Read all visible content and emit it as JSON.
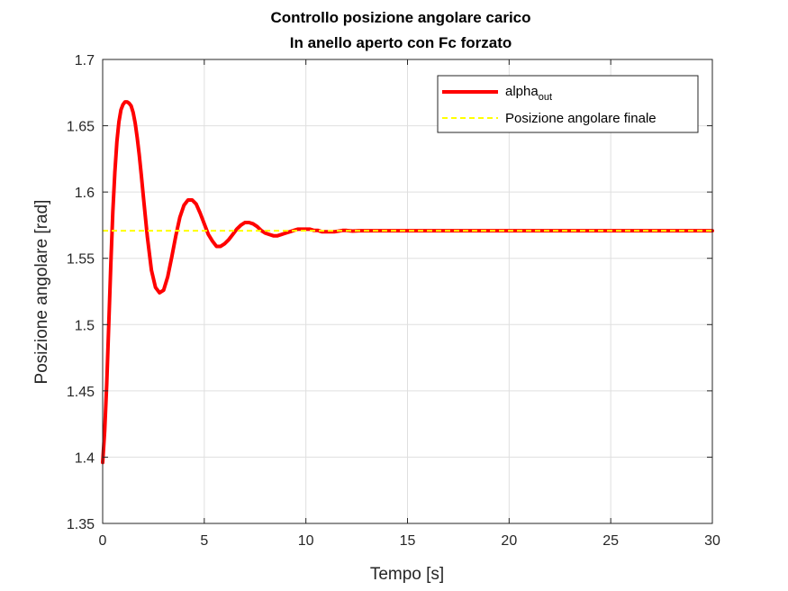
{
  "chart_data": {
    "type": "line",
    "title": [
      "Controllo posizione angolare carico",
      "In anello aperto con Fc forzato"
    ],
    "xlabel": "Tempo [s]",
    "ylabel": "Posizione angolare [rad]",
    "xlim": [
      0,
      30
    ],
    "ylim": [
      1.35,
      1.7
    ],
    "xticks": [
      0,
      5,
      10,
      15,
      20,
      25,
      30
    ],
    "xtick_labels": [
      "0",
      "5",
      "10",
      "15",
      "20",
      "25",
      "30"
    ],
    "yticks": [
      1.35,
      1.4,
      1.45,
      1.5,
      1.55,
      1.6,
      1.65,
      1.7
    ],
    "ytick_labels": [
      "1.35",
      "1.4",
      "1.45",
      "1.5",
      "1.55",
      "1.6",
      "1.65",
      "1.7"
    ],
    "grid": true,
    "legend_position": "top-right",
    "series": [
      {
        "name": "alpha",
        "name_subscript": "out",
        "color": "#ff0000",
        "style": "solid",
        "x": [
          0,
          0.1,
          0.2,
          0.3,
          0.4,
          0.5,
          0.6,
          0.7,
          0.8,
          0.9,
          1.0,
          1.1,
          1.2,
          1.3,
          1.4,
          1.5,
          1.6,
          1.7,
          1.8,
          1.9,
          2.0,
          2.2,
          2.4,
          2.6,
          2.8,
          3.0,
          3.2,
          3.4,
          3.6,
          3.8,
          4.0,
          4.2,
          4.4,
          4.6,
          4.8,
          5.0,
          5.2,
          5.4,
          5.6,
          5.8,
          6.0,
          6.2,
          6.4,
          6.6,
          6.8,
          7.0,
          7.2,
          7.4,
          7.6,
          7.8,
          8.0,
          8.2,
          8.4,
          8.6,
          8.8,
          9.0,
          9.2,
          9.4,
          9.6,
          9.8,
          10.0,
          10.2,
          10.4,
          10.6,
          10.8,
          11.0,
          11.2,
          11.4,
          11.6,
          11.8,
          12.0,
          12.3,
          12.6,
          13.0,
          13.5,
          14.0,
          14.5,
          15.0,
          16.0,
          18.0,
          20.0,
          22.0,
          25.0,
          28.0,
          30.0
        ],
        "y": [
          1.396,
          1.42,
          1.455,
          1.5,
          1.545,
          1.585,
          1.615,
          1.638,
          1.653,
          1.662,
          1.666,
          1.668,
          1.668,
          1.667,
          1.665,
          1.66,
          1.652,
          1.641,
          1.628,
          1.613,
          1.597,
          1.566,
          1.541,
          1.528,
          1.524,
          1.526,
          1.536,
          1.551,
          1.567,
          1.581,
          1.59,
          1.594,
          1.594,
          1.591,
          1.584,
          1.576,
          1.568,
          1.563,
          1.559,
          1.559,
          1.561,
          1.564,
          1.568,
          1.572,
          1.575,
          1.577,
          1.577,
          1.576,
          1.574,
          1.571,
          1.569,
          1.568,
          1.567,
          1.567,
          1.568,
          1.569,
          1.57,
          1.571,
          1.572,
          1.572,
          1.572,
          1.572,
          1.571,
          1.571,
          1.57,
          1.57,
          1.57,
          1.57,
          1.5705,
          1.571,
          1.571,
          1.5705,
          1.5708,
          1.5708,
          1.5708,
          1.5708,
          1.5708,
          1.5708,
          1.5708,
          1.5708,
          1.5708,
          1.5708,
          1.5708,
          1.5708,
          1.5708
        ]
      },
      {
        "name": "Posizione angolare finale",
        "color": "#ffff00",
        "style": "dashed",
        "x": [
          0,
          30
        ],
        "y": [
          1.5708,
          1.5708
        ]
      }
    ]
  }
}
